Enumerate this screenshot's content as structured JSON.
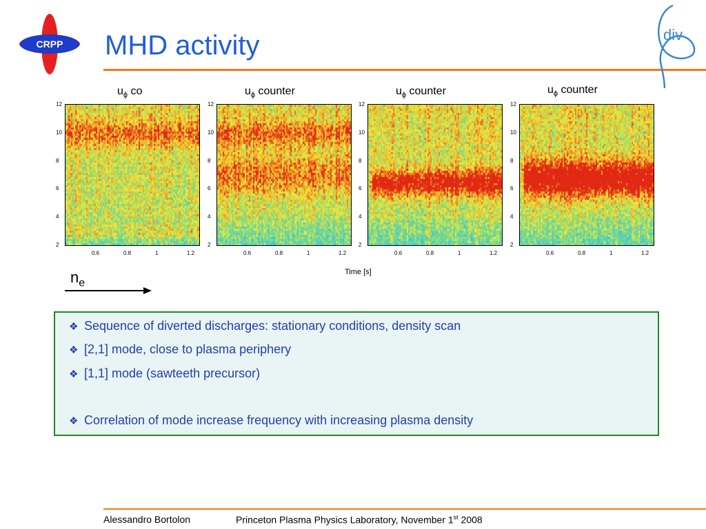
{
  "header": {
    "title": "MHD activity",
    "logo_text": "CRPP",
    "corner_logo_text": "div"
  },
  "figure": {
    "panels": [
      {
        "title_main": "u",
        "title_sub": "ϕ",
        "title_rest": " co"
      },
      {
        "title_main": "u",
        "title_sub": "ϕ",
        "title_rest": " counter"
      },
      {
        "title_main": "u",
        "title_sub": "ϕ",
        "title_rest": " counter"
      },
      {
        "title_main": "u",
        "title_sub": "ϕ",
        "title_rest": " counter"
      }
    ],
    "y_ticks": [
      "12",
      "10",
      "8",
      "6",
      "4",
      "2"
    ],
    "x_ticks": [
      "0.6",
      "0.8",
      "1",
      "1.2"
    ],
    "xlabel": "Time [s]",
    "density_label_main": "n",
    "density_label_sub": "e"
  },
  "bullets": [
    "Sequence of diverted discharges: stationary conditions, density scan",
    "[2,1] mode, close to plasma periphery",
    "[1,1] mode (sawteeth precursor)",
    "Correlation of mode increase frequency with increasing plasma density"
  ],
  "footer": {
    "author": "Alessandro Bortolon",
    "institution": "Princeton Plasma Physics Laboratory, November 1",
    "institution_sup": "st",
    "year": " 2008"
  },
  "colors": {
    "title": "#1f5fd6",
    "rule": "#f07a1a",
    "box_border": "#1b8a22",
    "bullet_text": "#2340a8"
  }
}
